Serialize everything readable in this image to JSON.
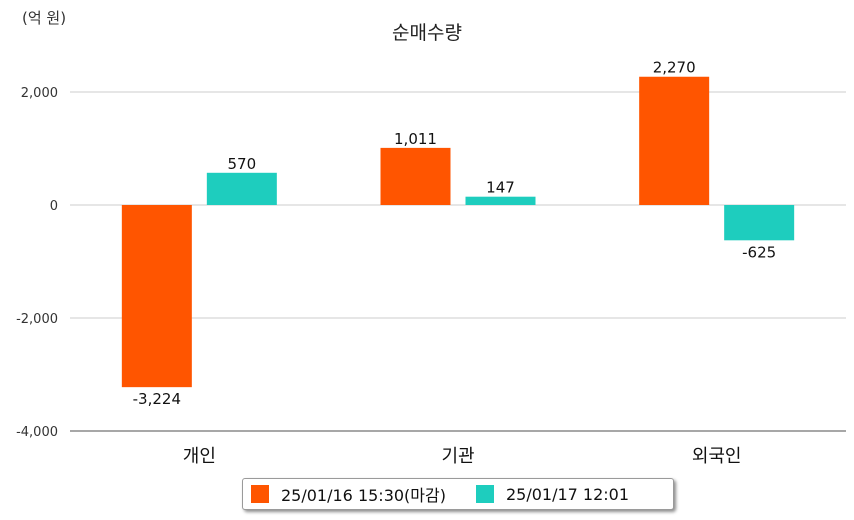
{
  "unit_label": "(억 원)",
  "chart_data": {
    "type": "bar",
    "title": "순매수량",
    "categories": [
      "개인",
      "기관",
      "외국인"
    ],
    "series": [
      {
        "name": "25/01/16 15:30(마감)",
        "values": [
          -3224,
          1011,
          2270
        ],
        "labels": [
          "-3,224",
          "1,011",
          "2,270"
        ],
        "color": "#ff5500"
      },
      {
        "name": "25/01/17 12:01",
        "values": [
          570,
          147,
          -625
        ],
        "labels": [
          "570",
          "147",
          "-625"
        ],
        "color": "#1ecdbe"
      }
    ],
    "y_ticks": [
      2000,
      0,
      -2000,
      -4000
    ],
    "y_tick_labels": [
      "2,000",
      "0",
      "-2,000",
      "-4,000"
    ],
    "ylim": [
      -4000,
      2000
    ],
    "grid": true,
    "legend_position": "bottom"
  }
}
